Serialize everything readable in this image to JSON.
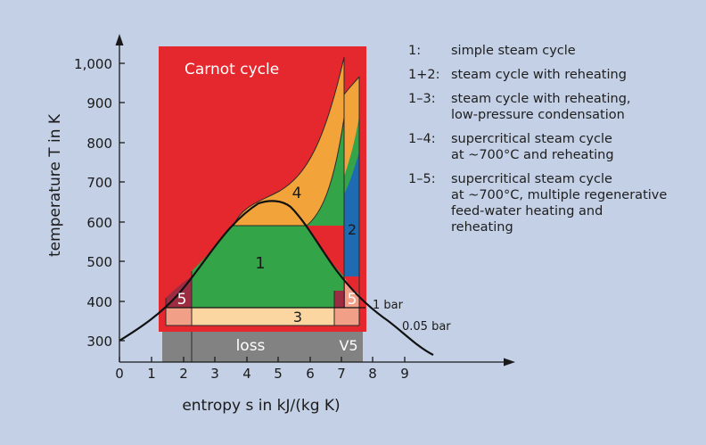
{
  "diagram": {
    "y_axis_label": "temperature T in K",
    "x_axis_label": "entropy s in kJ/(kg K)",
    "y_ticks": [
      "1,000",
      "900",
      "800",
      "700",
      "600",
      "500",
      "400",
      "300"
    ],
    "x_ticks": [
      "0",
      "1",
      "2",
      "3",
      "4",
      "5",
      "6",
      "7",
      "8",
      "9"
    ],
    "carnot_label": "Carnot cycle",
    "region_labels": {
      "r1": "1",
      "r2": "2",
      "r3": "3",
      "r4": "4",
      "r5_left": "5",
      "r5_right": "5"
    },
    "loss_label": "loss",
    "v5_label": "V5",
    "isobar_1bar": "1 bar",
    "isobar_005bar": "0.05 bar",
    "colors": {
      "background": "#c3d0e6",
      "carnot": "#e5282d",
      "orange": "#f2a43a",
      "green": "#33a548",
      "blue": "#1e6ab3",
      "salmon": "#f19f86",
      "beige": "#fbd6a0",
      "maroon": "#9c2c42",
      "loss": "#828282"
    }
  },
  "legend": [
    {
      "key": "1:",
      "lines": [
        "simple steam cycle"
      ]
    },
    {
      "key": "1+2:",
      "lines": [
        "steam cycle with reheating"
      ]
    },
    {
      "key": "1–3:",
      "lines": [
        "steam cycle with reheating,",
        "low-pressure condensation"
      ]
    },
    {
      "key": "1–4:",
      "lines": [
        "supercritical steam cycle",
        "at ~700°C and reheating"
      ]
    },
    {
      "key": "1–5:",
      "lines": [
        "supercritical steam cycle",
        "at ~700°C, multiple regenerative",
        "feed-water heating and",
        "reheating"
      ]
    }
  ]
}
